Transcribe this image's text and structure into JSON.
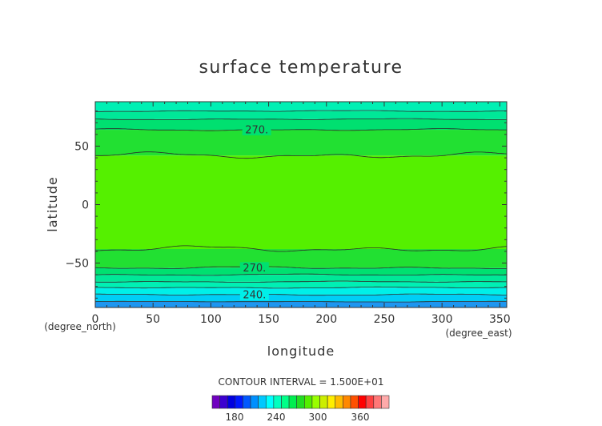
{
  "chart_data": {
    "type": "heatmap",
    "title": "surface temperature",
    "xlabel": "longitude",
    "ylabel": "latitude",
    "x_units": "(degree_east)",
    "y_units": "(degree_north)",
    "xlim": [
      0,
      356
    ],
    "ylim": [
      -88,
      88
    ],
    "x_ticks": [
      "0",
      "50",
      "100",
      "150",
      "200",
      "250",
      "300",
      "350"
    ],
    "y_ticks": [
      "-50",
      "0",
      "50"
    ],
    "contour_interval_text": "CONTOUR INTERVAL = 1.500E+01",
    "contour_labels": [
      "270.",
      "270.",
      "240."
    ],
    "colorbar": {
      "colors": [
        "#7000c0",
        "#3c00d0",
        "#0000e0",
        "#0018ff",
        "#0058ff",
        "#0090ff",
        "#00c8ff",
        "#00ffff",
        "#00ffc0",
        "#00ff88",
        "#00ee50",
        "#22dd22",
        "#55ee00",
        "#99ff00",
        "#ccee00",
        "#ffee00",
        "#ffbb00",
        "#ff8800",
        "#ff5000",
        "#ff0000",
        "#ff4040",
        "#ff7777",
        "#ffaaaa"
      ],
      "tick_labels": [
        "180",
        "240",
        "300",
        "360"
      ]
    },
    "bands": [
      {
        "from": -88,
        "to": -83,
        "color": "#1e96f0"
      },
      {
        "from": -83,
        "to": -77,
        "color": "#00cef6"
      },
      {
        "from": -77,
        "to": -71,
        "color": "#00f0e8"
      },
      {
        "from": -71,
        "to": -66,
        "color": "#00f0b4"
      },
      {
        "from": -66,
        "to": -60,
        "color": "#00e898"
      },
      {
        "from": -60,
        "to": -54,
        "color": "#00e070"
      },
      {
        "from": -54,
        "to": -38,
        "color": "#22e032"
      },
      {
        "from": -38,
        "to": 42,
        "color": "#55f000"
      },
      {
        "from": 42,
        "to": 64,
        "color": "#22e032"
      },
      {
        "from": 64,
        "to": 73,
        "color": "#00e070"
      },
      {
        "from": 73,
        "to": 80,
        "color": "#00e898"
      },
      {
        "from": 80,
        "to": 88,
        "color": "#00f0b4"
      }
    ],
    "contours": [
      {
        "lat": -83,
        "amp": 0.3
      },
      {
        "lat": -77,
        "amp": 0.6
      },
      {
        "lat": -71,
        "amp": 0.5
      },
      {
        "lat": -66,
        "amp": 0.5
      },
      {
        "lat": -60,
        "amp": 0.6
      },
      {
        "lat": -54,
        "amp": 1.0
      },
      {
        "lat": -38,
        "amp": 2.5
      },
      {
        "lat": 42,
        "amp": 2.5
      },
      {
        "lat": 64,
        "amp": 0.8
      },
      {
        "lat": 73,
        "amp": 0.5
      },
      {
        "lat": 80,
        "amp": 0.5
      }
    ]
  }
}
